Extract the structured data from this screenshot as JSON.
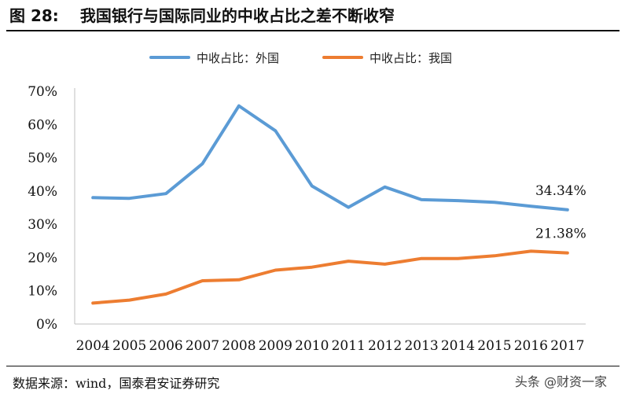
{
  "figure": {
    "number": "图 28:",
    "title": "我国银行与国际同业的中收占比之差不断收窄"
  },
  "footer": {
    "source": "数据来源：wind，国泰君安证券研究",
    "watermark": "头条 @财资一家"
  },
  "chart_data": {
    "type": "line",
    "title": "",
    "xlabel": "",
    "ylabel": "",
    "categories": [
      "2004",
      "2005",
      "2006",
      "2007",
      "2008",
      "2009",
      "2010",
      "2011",
      "2012",
      "2013",
      "2014",
      "2015",
      "2016",
      "2017"
    ],
    "ylim": [
      0,
      70
    ],
    "yticks": [
      0,
      10,
      20,
      30,
      40,
      50,
      60,
      70
    ],
    "ytick_labels": [
      "0%",
      "10%",
      "20%",
      "30%",
      "40%",
      "50%",
      "60%",
      "70%"
    ],
    "grid": false,
    "legend_position": "top",
    "series": [
      {
        "name": "中收占比：外国",
        "color": "#5b9bd5",
        "values": [
          38.0,
          37.8,
          39.2,
          48.2,
          65.6,
          58.1,
          41.5,
          35.1,
          41.2,
          37.4,
          37.1,
          36.6,
          35.4,
          34.34
        ],
        "end_label": "34.34%"
      },
      {
        "name": "中收占比：我国",
        "color": "#ed7d31",
        "values": [
          6.3,
          7.2,
          9.0,
          13.0,
          13.3,
          16.2,
          17.1,
          18.9,
          18.0,
          19.7,
          19.7,
          20.5,
          21.9,
          21.38
        ],
        "end_label": "21.38%"
      }
    ]
  }
}
